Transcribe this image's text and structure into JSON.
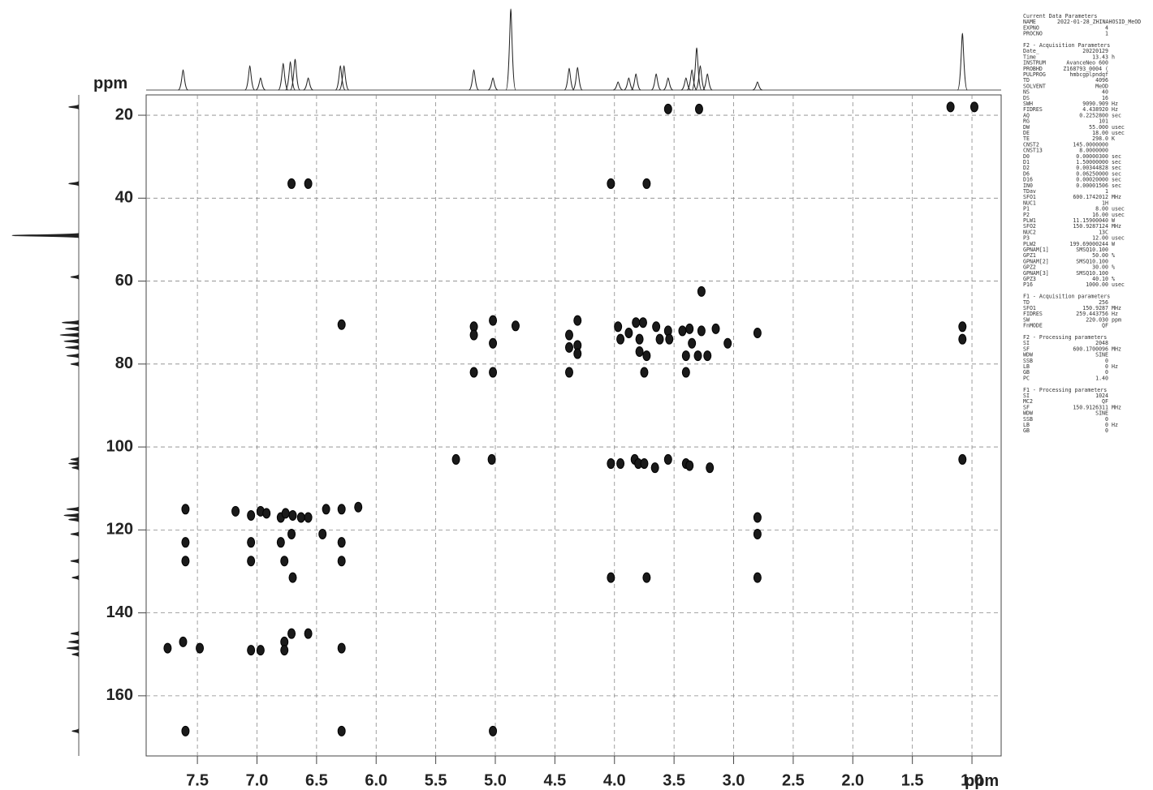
{
  "chart_data": {
    "type": "scatter",
    "x_label": "ppm",
    "y_label": "ppm",
    "xlim": [
      7.93,
      0.755
    ],
    "ylim": [
      15.1,
      174.5
    ],
    "xticks": [
      7.5,
      {
        "value": 7,
        "label": "7.0"
      },
      6.5,
      {
        "value": 6,
        "label": "6.0"
      },
      5.5,
      {
        "value": 5,
        "label": "5.0"
      },
      4.5,
      {
        "value": 4,
        "label": "4.0"
      },
      3.5,
      {
        "value": 3,
        "label": "3.0"
      },
      2.5,
      {
        "value": 2,
        "label": "2.0"
      },
      1.5,
      {
        "value": 1,
        "label": "1.0"
      }
    ],
    "yticks": [
      20,
      40,
      60,
      80,
      100,
      120,
      140,
      160
    ],
    "grid": true,
    "color": "#1a1a1a",
    "x": [
      3.55,
      3.29,
      1.18,
      0.98,
      6.71,
      6.57,
      4.03,
      3.73,
      3.27,
      6.29,
      5.18,
      5.18,
      5.02,
      5.02,
      4.83,
      4.38,
      4.38,
      4.31,
      4.31,
      4.31,
      3.97,
      3.95,
      3.88,
      3.82,
      3.79,
      3.79,
      3.76,
      3.65,
      3.62,
      3.55,
      3.54,
      3.43,
      3.37,
      3.35,
      3.3,
      3.27,
      3.22,
      3.15,
      3.05,
      2.8,
      1.08,
      1.08,
      3.73,
      3.4,
      5.18,
      5.02,
      4.38,
      3.75,
      3.4,
      5.33,
      5.03,
      4.03,
      3.95,
      3.83,
      3.8,
      3.75,
      3.66,
      3.55,
      3.4,
      3.37,
      3.2,
      1.08,
      7.6,
      7.18,
      7.05,
      6.97,
      6.92,
      6.8,
      6.76,
      6.7,
      6.63,
      6.57,
      6.42,
      6.29,
      6.15,
      2.8,
      7.6,
      7.05,
      6.71,
      6.45,
      6.29,
      6.8,
      2.8,
      7.6,
      7.05,
      6.77,
      6.7,
      6.29,
      4.03,
      3.73,
      2.8,
      7.75,
      7.62,
      7.48,
      7.05,
      6.97,
      6.77,
      6.77,
      6.71,
      6.57,
      6.29,
      7.6,
      6.29,
      5.02
    ],
    "values": [
      18.5,
      18.5,
      18,
      18,
      36.5,
      36.5,
      36.5,
      36.5,
      62.5,
      70.5,
      71,
      73,
      69.5,
      75,
      70.8,
      73,
      76,
      69.5,
      75.5,
      77.5,
      71,
      74,
      72.5,
      70,
      74,
      77,
      70,
      71,
      74,
      72,
      74,
      72,
      71.5,
      75,
      78,
      72,
      78,
      71.5,
      75,
      72.5,
      71,
      74,
      78,
      78,
      82,
      82,
      82,
      82,
      82,
      103,
      103,
      104,
      104,
      103,
      104,
      104,
      105,
      103,
      104,
      104.5,
      105,
      103,
      115,
      115.5,
      116.5,
      115.5,
      116,
      117,
      116,
      116.5,
      117,
      117,
      115,
      115,
      114.5,
      117,
      123,
      123,
      121,
      121,
      123,
      123,
      121,
      127.5,
      127.5,
      127.5,
      131.5,
      127.5,
      131.5,
      131.5,
      131.5,
      148.5,
      147,
      148.5,
      149,
      149,
      147,
      149,
      145,
      145,
      148.5,
      168.5,
      168.5,
      168.5
    ],
    "top_projection": {
      "x": [
        7.62,
        7.06,
        6.97,
        6.78,
        6.72,
        6.68,
        6.57,
        6.3,
        6.27,
        5.18,
        5.02,
        4.87,
        4.38,
        4.31,
        3.97,
        3.88,
        3.82,
        3.65,
        3.55,
        3.4,
        3.35,
        3.31,
        3.28,
        3.22,
        2.8,
        1.08
      ],
      "values": [
        25,
        30,
        15,
        33,
        35,
        38,
        15,
        30,
        30,
        25,
        15,
        100,
        27,
        28,
        10,
        15,
        20,
        20,
        15,
        15,
        25,
        52,
        30,
        20,
        10,
        70
      ]
    },
    "left_projection": {
      "y": [
        18,
        36.5,
        49,
        59,
        70,
        71.5,
        73,
        74.5,
        76,
        78,
        80,
        103,
        104,
        105,
        115,
        116.5,
        117.5,
        121,
        127.5,
        131.5,
        145,
        147,
        148.5,
        150,
        168.5
      ],
      "values": [
        15,
        15,
        100,
        12,
        25,
        20,
        28,
        22,
        20,
        18,
        12,
        12,
        15,
        10,
        18,
        22,
        15,
        12,
        12,
        10,
        12,
        15,
        18,
        10,
        10
      ]
    }
  },
  "parameters": {
    "sections": [
      {
        "title": "Current Data Parameters",
        "rows": [
          [
            "NAME",
            "2022-01-28_ZHINAHOSID_MeOD"
          ],
          [
            "EXPNO",
            "4"
          ],
          [
            "PROCNO",
            "1"
          ]
        ]
      },
      {
        "title": "F2 - Acquisition Parameters",
        "rows": [
          [
            "Date_",
            "20220129"
          ],
          [
            "Time",
            "13.43",
            "h"
          ],
          [
            "INSTRUM",
            "AvanceNeo 600"
          ],
          [
            "PROBHD",
            "Z168793_0004 ("
          ],
          [
            "PULPROG",
            "hmbcgplpndqf"
          ],
          [
            "TD",
            "4096"
          ],
          [
            "SOLVENT",
            "MeOD"
          ],
          [
            "NS",
            "40"
          ],
          [
            "DS",
            "16"
          ],
          [
            "SWH",
            "9090.909",
            "Hz"
          ],
          [
            "FIDRES",
            "4.438920",
            "Hz"
          ],
          [
            "AQ",
            "0.2252800",
            "sec"
          ],
          [
            "RG",
            "101"
          ],
          [
            "DW",
            "55.000",
            "usec"
          ],
          [
            "DE",
            "18.00",
            "usec"
          ],
          [
            "TE",
            "298.0",
            "K"
          ],
          [
            "CNST2",
            "145.0000000"
          ],
          [
            "CNST13",
            "8.0000000"
          ],
          [
            "D0",
            "0.00000300",
            "sec"
          ],
          [
            "D1",
            "1.50000000",
            "sec"
          ],
          [
            "D2",
            "0.00344828",
            "sec"
          ],
          [
            "D6",
            "0.06250000",
            "sec"
          ],
          [
            "D16",
            "0.00020000",
            "sec"
          ],
          [
            "IN0",
            "0.00001506",
            "sec"
          ],
          [
            "TDav",
            "1"
          ],
          [
            "SFO1",
            "600.1742012",
            "MHz"
          ],
          [
            "NUC1",
            "1H"
          ],
          [
            "P1",
            "8.00",
            "usec"
          ],
          [
            "P2",
            "16.00",
            "usec"
          ],
          [
            "PLW1",
            "11.15900040",
            "W"
          ],
          [
            "SFO2",
            "150.9287124",
            "MHz"
          ],
          [
            "NUC2",
            "13C"
          ],
          [
            "P3",
            "12.00",
            "usec"
          ],
          [
            "PLW2",
            "199.69000244",
            "W"
          ],
          [
            "GPNAM[1]",
            "SMSQ10.100"
          ],
          [
            "GPZ1",
            "50.00",
            "%"
          ],
          [
            "GPNAM[2]",
            "SMSQ10.100"
          ],
          [
            "GPZ2",
            "30.00",
            "%"
          ],
          [
            "GPNAM[3]",
            "SMSQ10.100"
          ],
          [
            "GPZ3",
            "40.10",
            "%"
          ],
          [
            "P16",
            "1000.00",
            "usec"
          ]
        ]
      },
      {
        "title": "F1 - Acquisition parameters",
        "rows": [
          [
            "TD",
            "256"
          ],
          [
            "SFO1",
            "150.9287",
            "MHz"
          ],
          [
            "FIDRES",
            "259.443756",
            "Hz"
          ],
          [
            "SW",
            "220.030",
            "ppm"
          ],
          [
            "FnMODE",
            "QF"
          ]
        ]
      },
      {
        "title": "F2 - Processing parameters",
        "rows": [
          [
            "SI",
            "2048"
          ],
          [
            "SF",
            "600.1700096",
            "MHz"
          ],
          [
            "WDW",
            "SINE"
          ],
          [
            "SSB",
            "0"
          ],
          [
            "LB",
            "0",
            "Hz"
          ],
          [
            "GB",
            "0"
          ],
          [
            "PC",
            "1.40"
          ]
        ]
      },
      {
        "title": "F1 - Processing parameters",
        "rows": [
          [
            "SI",
            "1024"
          ],
          [
            "MC2",
            "QF"
          ],
          [
            "SF",
            "150.9126311",
            "MHz"
          ],
          [
            "WDW",
            "SINE"
          ],
          [
            "SSB",
            "0"
          ],
          [
            "LB",
            "0",
            "Hz"
          ],
          [
            "GB",
            "0"
          ]
        ]
      }
    ]
  }
}
